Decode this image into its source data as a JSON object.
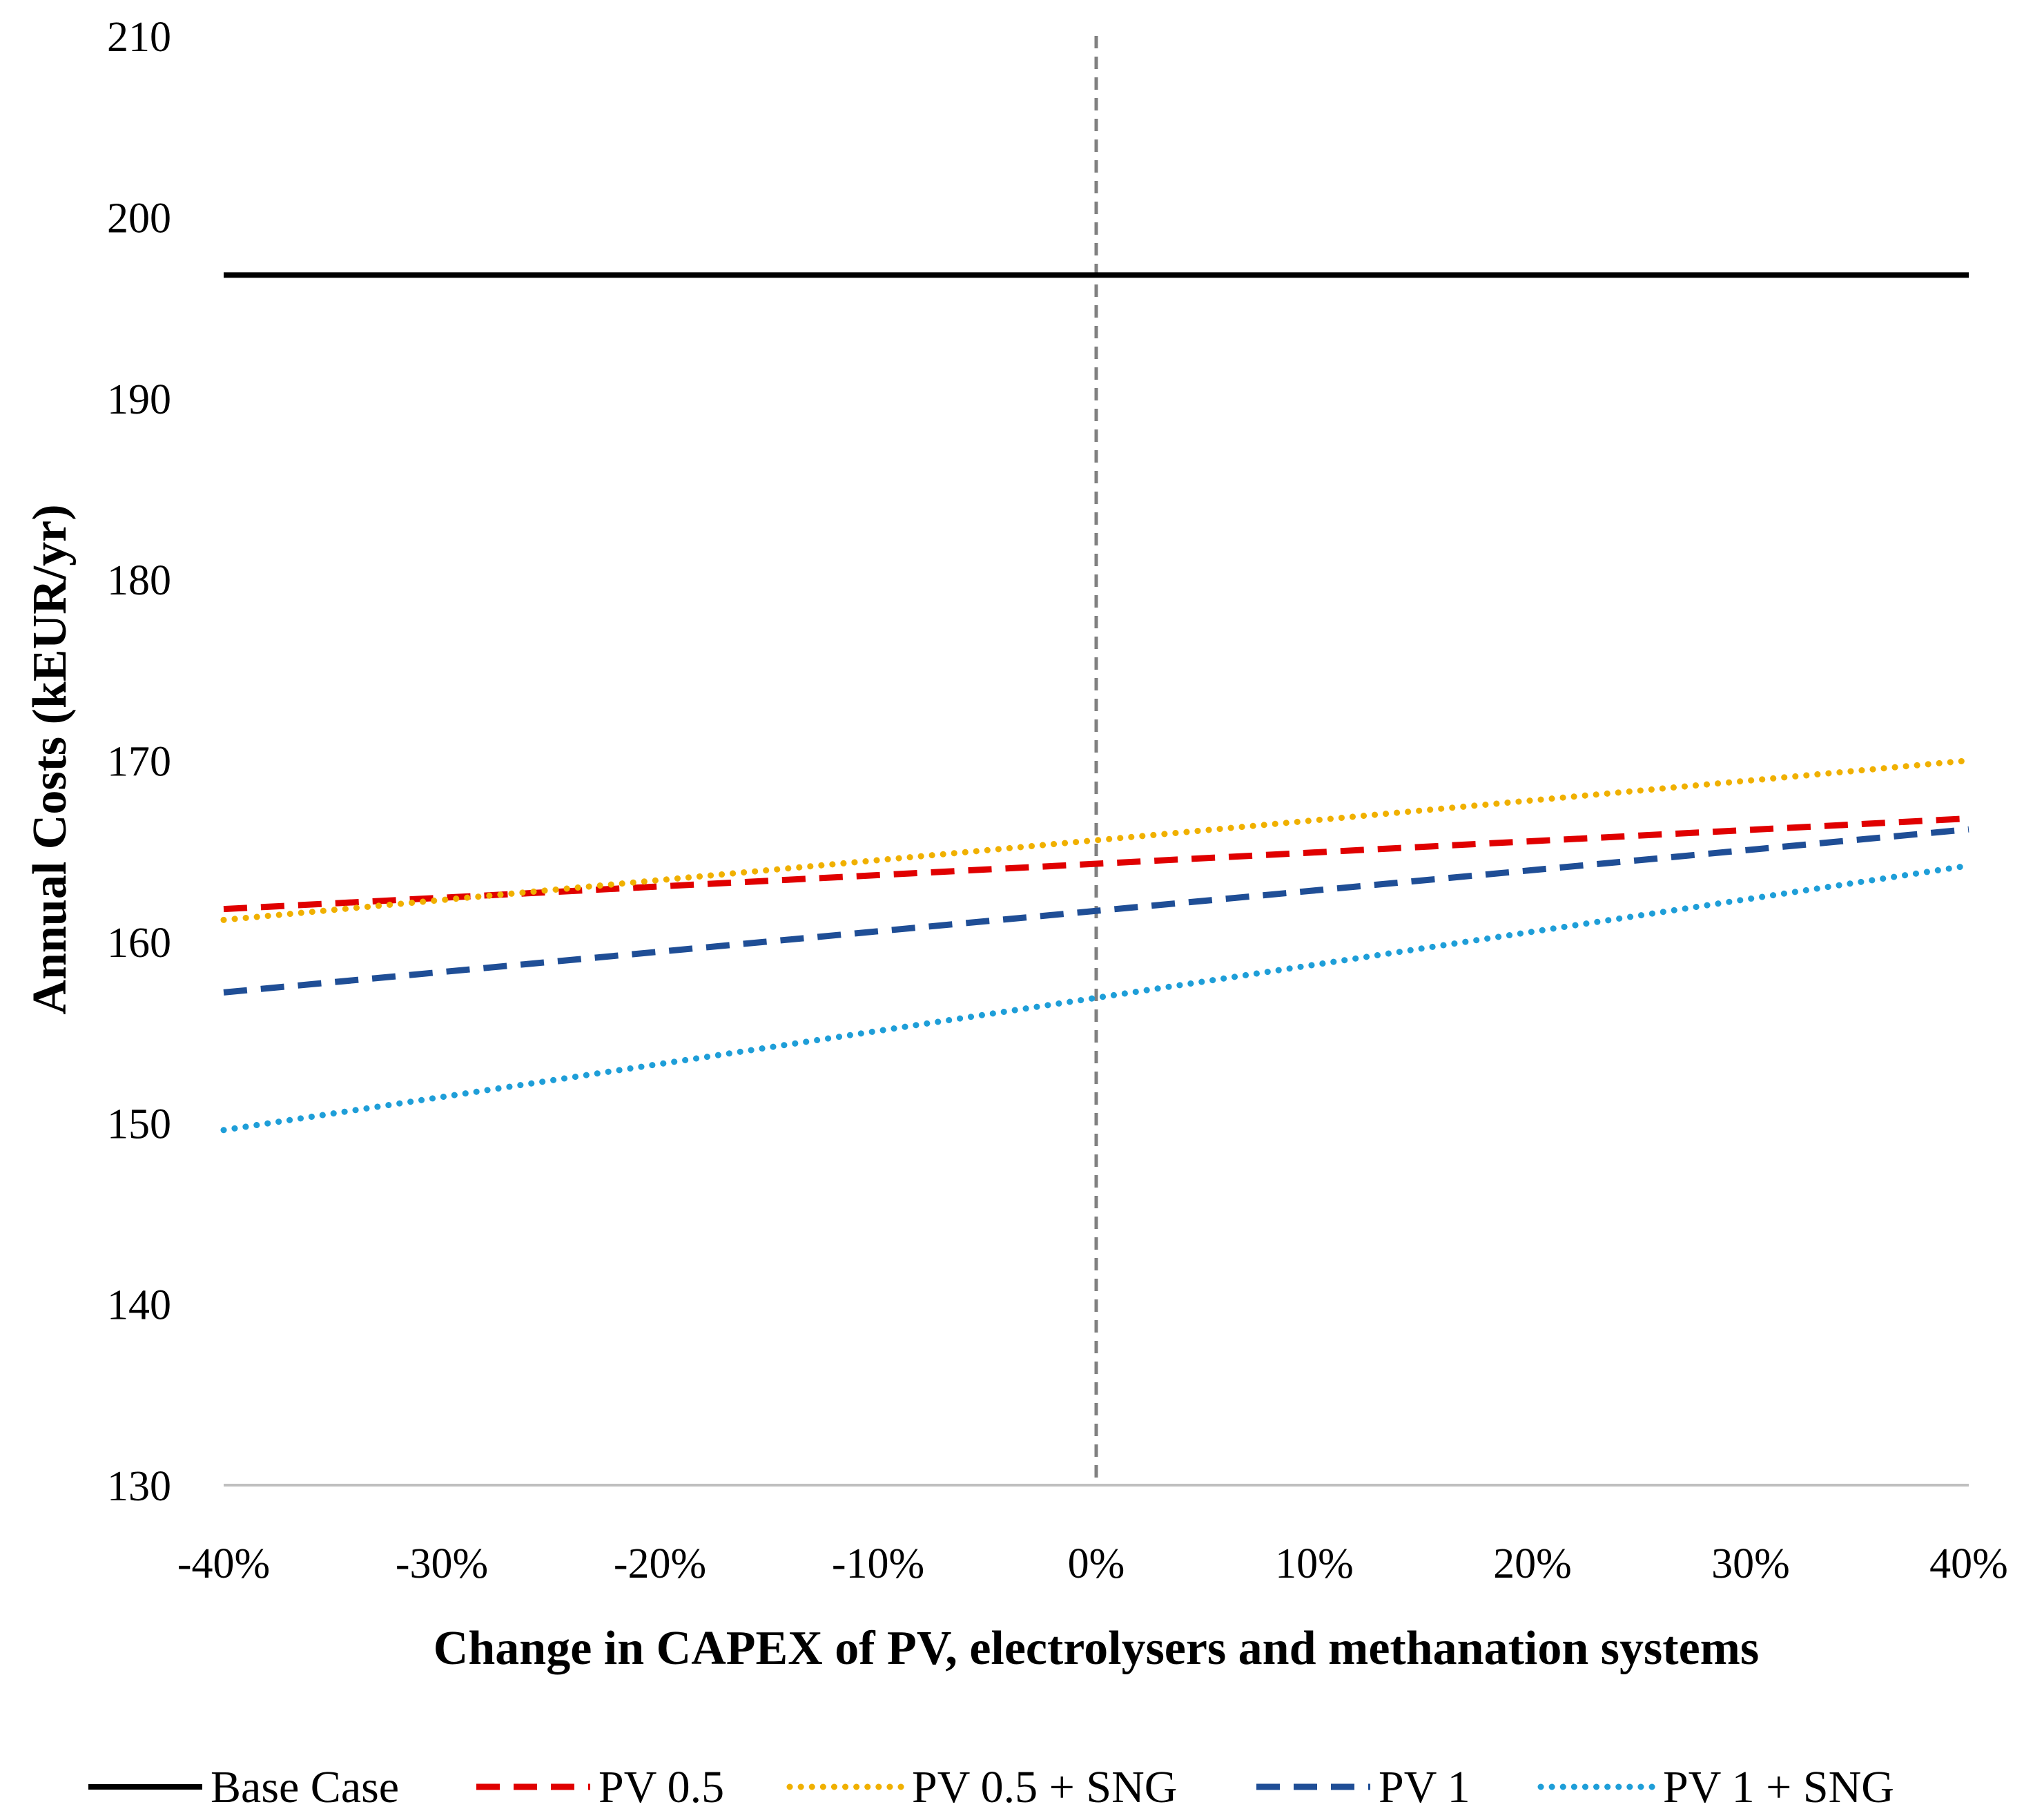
{
  "chart_data": {
    "type": "line",
    "title": "",
    "xlabel": "Change in CAPEX of PV, electrolysers and methanation systems",
    "ylabel": "Annual Costs (kEUR/yr)",
    "x": [
      -40,
      40
    ],
    "xlim": [
      -40,
      40
    ],
    "ylim": [
      130,
      210
    ],
    "x_ticks": [
      -40,
      -30,
      -20,
      -10,
      0,
      10,
      20,
      30,
      40
    ],
    "x_tick_labels": [
      "-40%",
      "-30%",
      "-20%",
      "-10%",
      "0%",
      "10%",
      "20%",
      "30%",
      "40%"
    ],
    "y_ticks": [
      130,
      140,
      150,
      160,
      170,
      180,
      190,
      200,
      210
    ],
    "y_tick_labels": [
      "130",
      "140",
      "150",
      "160",
      "170",
      "180",
      "190",
      "200",
      "210"
    ],
    "reference_line": {
      "x": 0,
      "style": "dashed",
      "color": "#808080"
    },
    "grid": false,
    "legend_position": "bottom",
    "series": [
      {
        "name": "Base Case",
        "values": [
          196.8,
          196.8
        ],
        "color": "#000000",
        "style": "solid"
      },
      {
        "name": "PV 0.5",
        "values": [
          161.8,
          166.8
        ],
        "color": "#E00000",
        "style": "dashed"
      },
      {
        "name": "PV 0.5 + SNG",
        "values": [
          161.2,
          170.0
        ],
        "color": "#F0B000",
        "style": "dotted"
      },
      {
        "name": "PV 1",
        "values": [
          157.2,
          166.2
        ],
        "color": "#1F4E96",
        "style": "dashed"
      },
      {
        "name": "PV 1 + SNG",
        "values": [
          149.6,
          164.2
        ],
        "color": "#1E9ED8",
        "style": "dotted"
      }
    ]
  }
}
